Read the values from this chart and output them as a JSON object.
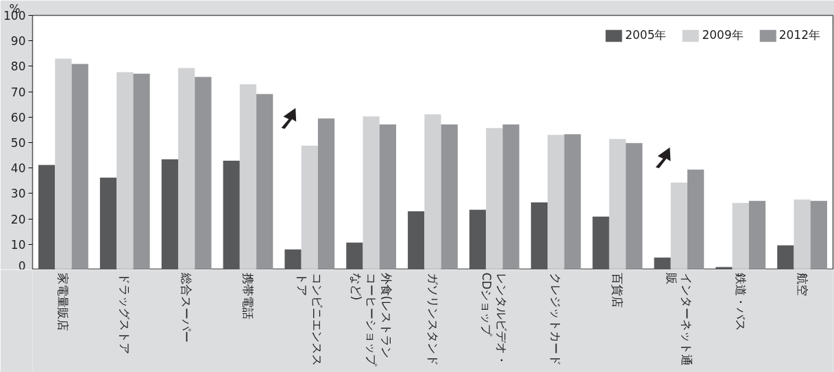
{
  "chart_data": {
    "type": "bar",
    "ylabel": "%",
    "categories": [
      "家電量販店",
      "ドラッグストア",
      "総合スーパー",
      "携帯電話",
      "コンビニエンスストア",
      "外食(レストランコーヒーショップなど)",
      "ガソリンスタンド",
      "レンタルビデオ・CDショップ",
      "クレジットカード",
      "百貨店",
      "インターネット通販",
      "鉄道・バス",
      "航空"
    ],
    "series": [
      {
        "name": "2005年",
        "color": "#58595b",
        "values": [
          41.2,
          36.2,
          43.4,
          42.9,
          8.0,
          10.7,
          23.0,
          23.6,
          26.5,
          20.9,
          4.8,
          1.1,
          9.6
        ]
      },
      {
        "name": "2009年",
        "color": "#d1d2d4",
        "values": [
          83.0,
          77.7,
          79.3,
          72.9,
          48.8,
          60.3,
          61.1,
          55.7,
          53.0,
          51.4,
          34.3,
          26.3,
          27.6
        ]
      },
      {
        "name": "2012年",
        "color": "#939598",
        "values": [
          80.9,
          77.1,
          75.8,
          69.1,
          59.5,
          57.1,
          57.1,
          57.1,
          53.3,
          49.8,
          39.4,
          27.1,
          27.1
        ]
      }
    ],
    "ylim": [
      0,
      100
    ],
    "yticks": [
      0,
      10,
      20,
      30,
      40,
      50,
      60,
      70,
      80,
      90,
      100
    ],
    "grid": false,
    "legend": "top right"
  }
}
